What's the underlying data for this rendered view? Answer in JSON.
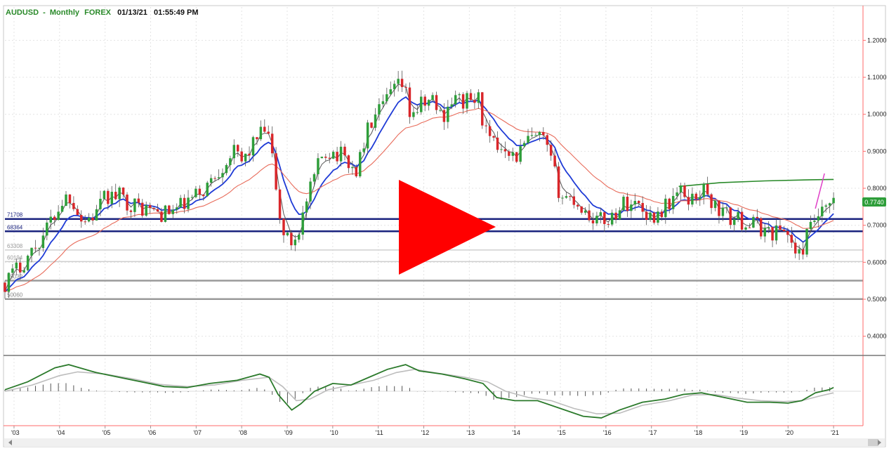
{
  "header": {
    "symbol": "AUDUSD",
    "timeframe_sep": "-",
    "timeframe": "Monthly",
    "market": "FOREX",
    "date": "01/13/21",
    "time": "01:55:49 PM"
  },
  "colors": {
    "candle_up": "#2e9e3a",
    "candle_down": "#d9262a",
    "ma_fast": "#555555",
    "ma_mid": "#1f3bd6",
    "ma_slow": "#e86b5a",
    "ma_long": "#2a8a2a",
    "level_line": "#1a237e",
    "macd_line": "#2b7a2b",
    "signal_line": "#bdbdbd",
    "histogram": "#555555",
    "play_button": "#ff0000",
    "axis_line": "#ff6a6a",
    "trend_line": "#e040c8",
    "last_price_bg": "#2e9e3a"
  },
  "price_panel": {
    "last_price_label": "0.7740"
  },
  "chart_data": {
    "type": "candlestick",
    "title": "AUDUSD - Monthly  FOREX",
    "ylim": [
      0.35,
      1.29
    ],
    "y_ticks": [
      "1.2000",
      "1.1000",
      "1.0000",
      "0.9000",
      "0.8000",
      "0.7000",
      "0.6000",
      "0.5000",
      "0.4000"
    ],
    "y_tick_values": [
      1.2,
      1.1,
      1.0,
      0.9,
      0.8,
      0.7,
      0.6,
      0.5,
      0.4
    ],
    "x_ticks": [
      "'03",
      "'04",
      "'05",
      "'06",
      "'07",
      "'08",
      "'09",
      "'10",
      "'11",
      "'12",
      "'13",
      "'14",
      "'15",
      "'16",
      "'17",
      "'18",
      "'19",
      "'20",
      "'21"
    ],
    "x_tick_values": [
      2003,
      2004,
      2005,
      2006,
      2007,
      2008,
      2009,
      2010,
      2011,
      2012,
      2013,
      2014,
      2015,
      2016,
      2017,
      2018,
      2019,
      2020,
      2021
    ],
    "xlim": [
      2002.8,
      2021.6
    ],
    "price_path": [
      [
        2002.8,
        0.545
      ],
      [
        2003.2,
        0.6
      ],
      [
        2003.6,
        0.665
      ],
      [
        2004.1,
        0.775
      ],
      [
        2004.25,
        0.78
      ],
      [
        2004.5,
        0.71
      ],
      [
        2004.8,
        0.73
      ],
      [
        2005.0,
        0.775
      ],
      [
        2005.3,
        0.78
      ],
      [
        2005.6,
        0.755
      ],
      [
        2006.0,
        0.74
      ],
      [
        2006.3,
        0.73
      ],
      [
        2006.6,
        0.745
      ],
      [
        2006.9,
        0.77
      ],
      [
        2007.2,
        0.8
      ],
      [
        2007.5,
        0.85
      ],
      [
        2007.8,
        0.9
      ],
      [
        2008.0,
        0.87
      ],
      [
        2008.3,
        0.93
      ],
      [
        2008.55,
        0.96
      ],
      [
        2008.7,
        0.86
      ],
      [
        2008.85,
        0.7
      ],
      [
        2009.05,
        0.65
      ],
      [
        2009.2,
        0.67
      ],
      [
        2009.4,
        0.75
      ],
      [
        2009.6,
        0.83
      ],
      [
        2009.8,
        0.9
      ],
      [
        2010.0,
        0.9
      ],
      [
        2010.3,
        0.88
      ],
      [
        2010.5,
        0.84
      ],
      [
        2010.8,
        0.97
      ],
      [
        2011.0,
        1.0
      ],
      [
        2011.3,
        1.06
      ],
      [
        2011.55,
        1.08
      ],
      [
        2011.7,
        1.0
      ],
      [
        2011.9,
        1.02
      ],
      [
        2012.2,
        1.04
      ],
      [
        2012.4,
        0.99
      ],
      [
        2012.6,
        1.04
      ],
      [
        2012.9,
        1.035
      ],
      [
        2013.2,
        1.04
      ],
      [
        2013.4,
        0.93
      ],
      [
        2013.6,
        0.91
      ],
      [
        2013.8,
        0.92
      ],
      [
        2014.0,
        0.88
      ],
      [
        2014.3,
        0.93
      ],
      [
        2014.6,
        0.935
      ],
      [
        2014.8,
        0.87
      ],
      [
        2015.0,
        0.78
      ],
      [
        2015.3,
        0.77
      ],
      [
        2015.6,
        0.73
      ],
      [
        2015.9,
        0.71
      ],
      [
        2016.1,
        0.72
      ],
      [
        2016.4,
        0.76
      ],
      [
        2016.7,
        0.76
      ],
      [
        2017.0,
        0.72
      ],
      [
        2017.3,
        0.75
      ],
      [
        2017.6,
        0.79
      ],
      [
        2017.9,
        0.77
      ],
      [
        2018.1,
        0.8
      ],
      [
        2018.4,
        0.75
      ],
      [
        2018.7,
        0.72
      ],
      [
        2019.0,
        0.71
      ],
      [
        2019.3,
        0.7
      ],
      [
        2019.6,
        0.68
      ],
      [
        2019.9,
        0.69
      ],
      [
        2020.05,
        0.67
      ],
      [
        2020.2,
        0.6
      ],
      [
        2020.35,
        0.65
      ],
      [
        2020.6,
        0.72
      ],
      [
        2020.8,
        0.73
      ],
      [
        2020.95,
        0.755
      ],
      [
        2021.0,
        0.774
      ]
    ],
    "horizontal_levels": [
      {
        "label": "71708",
        "value": 0.71708,
        "style": "heavy-navy"
      },
      {
        "label": "68364",
        "value": 0.68364,
        "style": "heavy-navy"
      },
      {
        "label": "63308",
        "value": 0.63308,
        "style": "light-gray"
      },
      {
        "label": "60194",
        "value": 0.60194,
        "style": "light-gray"
      },
      {
        "label": "55032",
        "value": 0.5503,
        "style": "dark-gray"
      },
      {
        "label": "50060",
        "value": 0.5006,
        "style": "dark-gray"
      }
    ],
    "moving_averages": [
      {
        "key": "fast",
        "smoothing": 3
      },
      {
        "key": "mid",
        "smoothing": 9
      },
      {
        "key": "slow",
        "smoothing": 26
      }
    ],
    "long_ma": [
      [
        2017.6,
        0.805
      ],
      [
        2018.5,
        0.815
      ],
      [
        2019.5,
        0.82
      ],
      [
        2020.5,
        0.823
      ],
      [
        2021.0,
        0.824
      ]
    ],
    "trend_line": [
      [
        2020.6,
        0.745
      ],
      [
        2020.8,
        0.84
      ]
    ],
    "oscillator": {
      "ylim": [
        -1.1,
        1.1
      ],
      "macd": [
        [
          2002.8,
          0.05
        ],
        [
          2003.3,
          0.3
        ],
        [
          2003.9,
          0.75
        ],
        [
          2004.2,
          0.85
        ],
        [
          2004.8,
          0.6
        ],
        [
          2005.3,
          0.45
        ],
        [
          2005.8,
          0.3
        ],
        [
          2006.3,
          0.15
        ],
        [
          2006.8,
          0.12
        ],
        [
          2007.3,
          0.25
        ],
        [
          2007.9,
          0.35
        ],
        [
          2008.4,
          0.55
        ],
        [
          2008.6,
          0.45
        ],
        [
          2008.8,
          -0.1
        ],
        [
          2009.1,
          -0.6
        ],
        [
          2009.3,
          -0.4
        ],
        [
          2009.6,
          0.0
        ],
        [
          2010.0,
          0.25
        ],
        [
          2010.4,
          0.2
        ],
        [
          2010.8,
          0.45
        ],
        [
          2011.2,
          0.7
        ],
        [
          2011.6,
          0.85
        ],
        [
          2011.9,
          0.65
        ],
        [
          2012.4,
          0.55
        ],
        [
          2012.9,
          0.4
        ],
        [
          2013.3,
          0.25
        ],
        [
          2013.6,
          -0.2
        ],
        [
          2014.0,
          -0.3
        ],
        [
          2014.5,
          -0.3
        ],
        [
          2015.0,
          -0.55
        ],
        [
          2015.5,
          -0.8
        ],
        [
          2015.9,
          -0.85
        ],
        [
          2016.3,
          -0.6
        ],
        [
          2016.8,
          -0.35
        ],
        [
          2017.3,
          -0.25
        ],
        [
          2017.7,
          -0.1
        ],
        [
          2018.1,
          -0.05
        ],
        [
          2018.6,
          -0.2
        ],
        [
          2019.1,
          -0.35
        ],
        [
          2019.6,
          -0.35
        ],
        [
          2020.0,
          -0.38
        ],
        [
          2020.3,
          -0.3
        ],
        [
          2020.6,
          -0.05
        ],
        [
          2020.9,
          0.05
        ],
        [
          2021.0,
          0.12
        ]
      ],
      "signal": [
        [
          2002.8,
          0.0
        ],
        [
          2003.4,
          0.2
        ],
        [
          2004.0,
          0.5
        ],
        [
          2004.4,
          0.62
        ],
        [
          2005.0,
          0.55
        ],
        [
          2005.6,
          0.4
        ],
        [
          2006.2,
          0.22
        ],
        [
          2006.8,
          0.15
        ],
        [
          2007.4,
          0.2
        ],
        [
          2008.0,
          0.35
        ],
        [
          2008.6,
          0.45
        ],
        [
          2008.9,
          0.15
        ],
        [
          2009.2,
          -0.3
        ],
        [
          2009.5,
          -0.25
        ],
        [
          2009.9,
          0.05
        ],
        [
          2010.4,
          0.2
        ],
        [
          2010.9,
          0.35
        ],
        [
          2011.4,
          0.6
        ],
        [
          2011.8,
          0.7
        ],
        [
          2012.3,
          0.58
        ],
        [
          2012.9,
          0.45
        ],
        [
          2013.4,
          0.3
        ],
        [
          2013.8,
          0.0
        ],
        [
          2014.3,
          -0.2
        ],
        [
          2014.8,
          -0.3
        ],
        [
          2015.3,
          -0.55
        ],
        [
          2015.8,
          -0.72
        ],
        [
          2016.3,
          -0.7
        ],
        [
          2016.8,
          -0.45
        ],
        [
          2017.4,
          -0.3
        ],
        [
          2017.9,
          -0.12
        ],
        [
          2018.4,
          -0.1
        ],
        [
          2018.9,
          -0.22
        ],
        [
          2019.4,
          -0.3
        ],
        [
          2019.9,
          -0.33
        ],
        [
          2020.3,
          -0.3
        ],
        [
          2020.7,
          -0.15
        ],
        [
          2021.0,
          -0.05
        ]
      ]
    }
  }
}
